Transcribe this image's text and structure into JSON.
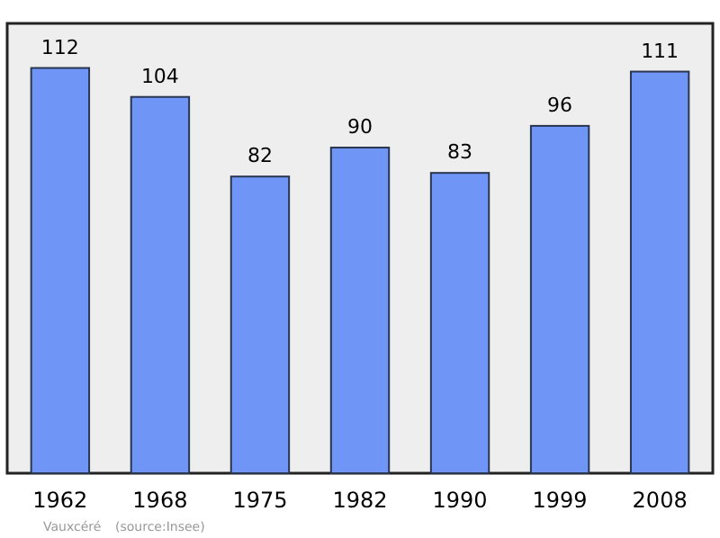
{
  "chart_data": {
    "type": "bar",
    "categories": [
      "1962",
      "1968",
      "1975",
      "1982",
      "1990",
      "1999",
      "2008"
    ],
    "values": [
      112,
      104,
      82,
      90,
      83,
      96,
      111
    ],
    "color": "#6f96f7",
    "data_labels": true,
    "annotations": [
      "Vauxcéré",
      "(source:Insee)"
    ]
  }
}
